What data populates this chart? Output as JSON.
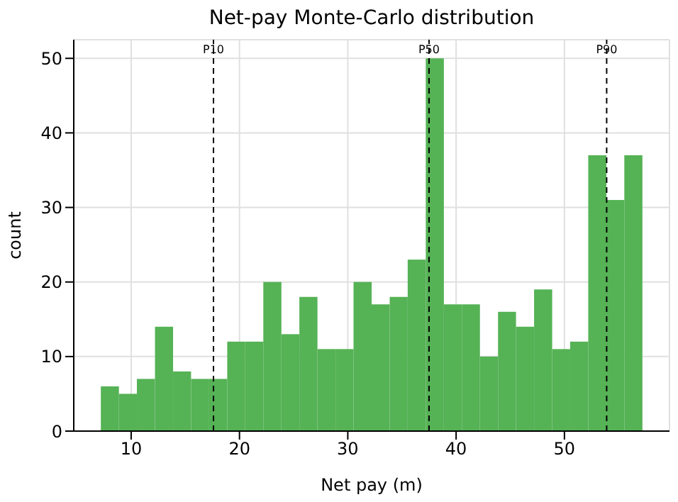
{
  "chart_data": {
    "type": "histogram",
    "title": "Net-pay Monte-Carlo distribution",
    "xlabel": "Net pay (m)",
    "ylabel": "count",
    "bins": [
      7.2,
      8.87,
      10.53,
      12.2,
      13.87,
      15.53,
      17.2,
      18.87,
      20.53,
      22.2,
      23.87,
      25.53,
      27.2,
      28.87,
      30.53,
      32.2,
      33.87,
      35.53,
      37.2,
      38.87,
      40.53,
      42.2,
      43.87,
      45.53,
      47.2,
      48.87,
      50.53,
      52.2,
      53.87,
      55.53,
      57.2
    ],
    "values": [
      6,
      5,
      7,
      14,
      8,
      7,
      7,
      12,
      12,
      20,
      13,
      18,
      11,
      11,
      20,
      17,
      18,
      23,
      50,
      17,
      17,
      10,
      16,
      14,
      19,
      11,
      12,
      37,
      31,
      37
    ],
    "color": "#55b255",
    "xlim": [
      4.7,
      59.7
    ],
    "xticks": [
      10,
      20,
      30,
      40,
      50
    ],
    "ylim": [
      0,
      52.5
    ],
    "yticks": [
      0,
      10,
      20,
      30,
      40,
      50
    ],
    "grid": true,
    "ref_lines": [
      {
        "axis": "x",
        "value": 17.6,
        "label": "P10",
        "color": "#000000",
        "line_style": "dashed"
      },
      {
        "axis": "x",
        "value": 37.5,
        "label": "P50",
        "color": "#000000",
        "line_style": "dashed"
      },
      {
        "axis": "x",
        "value": 53.9,
        "label": "P90",
        "color": "#000000",
        "line_style": "dashed"
      }
    ]
  }
}
